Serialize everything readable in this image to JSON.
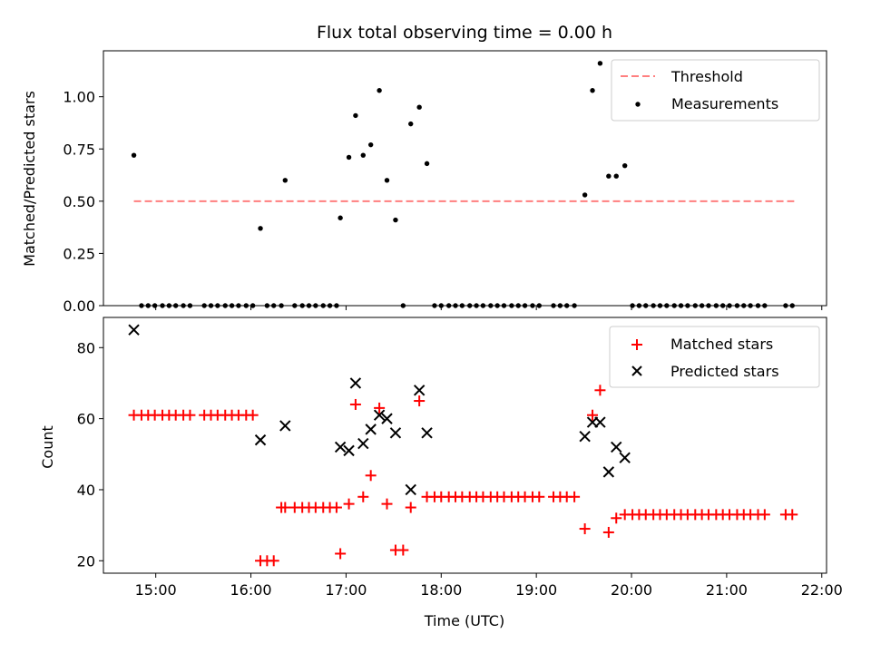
{
  "chart_data": [
    {
      "type": "scatter",
      "title": "Flux total observing time = 0.00 h",
      "xlabel": "",
      "ylabel": "Matched/Predicted stars",
      "x_unit": "hours UTC",
      "xlim": [
        14.45,
        22.05
      ],
      "ylim": [
        0,
        1.22
      ],
      "yticks": [
        0.0,
        0.25,
        0.5,
        0.75,
        1.0
      ],
      "ytick_labels": [
        "0.00",
        "0.25",
        "0.50",
        "0.75",
        "1.00"
      ],
      "xticks": [
        15,
        16,
        17,
        18,
        19,
        20,
        21,
        22
      ],
      "xtick_labels": [],
      "legend_position": "upper right",
      "series": [
        {
          "name": "Threshold",
          "kind": "dashed-line",
          "color": "#ff7f7f",
          "x": [
            14.77,
            21.71
          ],
          "y": [
            0.5,
            0.5
          ]
        },
        {
          "name": "Measurements",
          "kind": "dots",
          "color": "#000000",
          "x": [
            14.77,
            14.85,
            14.92,
            14.99,
            15.07,
            15.14,
            15.21,
            15.29,
            15.36,
            15.51,
            15.58,
            15.65,
            15.73,
            15.8,
            15.87,
            15.95,
            16.02,
            16.1,
            16.17,
            16.24,
            16.32,
            16.36,
            16.46,
            16.54,
            16.61,
            16.68,
            16.76,
            16.83,
            16.9,
            16.94,
            17.03,
            17.1,
            17.18,
            17.26,
            17.35,
            17.43,
            17.52,
            17.6,
            17.68,
            17.77,
            17.85,
            17.93,
            18.0,
            18.08,
            18.15,
            18.22,
            18.3,
            18.37,
            18.44,
            18.52,
            18.59,
            18.66,
            18.74,
            18.81,
            18.88,
            18.96,
            19.03,
            19.18,
            19.25,
            19.32,
            19.4,
            19.51,
            19.59,
            19.67,
            19.76,
            19.84,
            19.93,
            20.01,
            20.08,
            20.15,
            20.23,
            20.3,
            20.37,
            20.45,
            20.52,
            20.59,
            20.67,
            20.74,
            20.81,
            20.89,
            20.96,
            21.03,
            21.11,
            21.18,
            21.25,
            21.33,
            21.4,
            21.62,
            21.69
          ],
          "y": [
            0.72,
            0,
            0,
            0,
            0,
            0,
            0,
            0,
            0,
            0,
            0,
            0,
            0,
            0,
            0,
            0,
            0,
            0.37,
            0,
            0,
            0,
            0.6,
            0,
            0,
            0,
            0,
            0,
            0,
            0,
            0.42,
            0.71,
            0.91,
            0.72,
            0.77,
            1.03,
            0.6,
            0.41,
            0,
            0.87,
            0.95,
            0.68,
            0,
            0,
            0,
            0,
            0,
            0,
            0,
            0,
            0,
            0,
            0,
            0,
            0,
            0,
            0,
            0,
            0,
            0,
            0,
            0,
            0.53,
            1.03,
            1.16,
            0.62,
            0.62,
            0.67,
            0,
            0,
            0,
            0,
            0,
            0,
            0,
            0,
            0,
            0,
            0,
            0,
            0,
            0,
            0,
            0,
            0,
            0,
            0,
            0,
            0,
            0
          ]
        }
      ]
    },
    {
      "type": "scatter",
      "title": "",
      "xlabel": "Time (UTC)",
      "ylabel": "Count",
      "x_unit": "hours UTC",
      "xlim": [
        14.45,
        22.05
      ],
      "ylim": [
        16.5,
        88.5
      ],
      "yticks": [
        20,
        40,
        60,
        80
      ],
      "ytick_labels": [
        "20",
        "40",
        "60",
        "80"
      ],
      "xticks": [
        15,
        16,
        17,
        18,
        19,
        20,
        21,
        22
      ],
      "xtick_labels": [
        "15:00",
        "16:00",
        "17:00",
        "18:00",
        "19:00",
        "20:00",
        "21:00",
        "22:00"
      ],
      "legend_position": "upper right",
      "series": [
        {
          "name": "Matched stars",
          "kind": "plus",
          "color": "#ff0000",
          "x": [
            14.77,
            14.85,
            14.92,
            14.99,
            15.07,
            15.14,
            15.21,
            15.29,
            15.36,
            15.51,
            15.58,
            15.65,
            15.73,
            15.8,
            15.87,
            15.95,
            16.02,
            16.1,
            16.17,
            16.24,
            16.32,
            16.36,
            16.46,
            16.54,
            16.61,
            16.68,
            16.76,
            16.83,
            16.9,
            16.94,
            17.03,
            17.1,
            17.18,
            17.26,
            17.35,
            17.43,
            17.52,
            17.6,
            17.68,
            17.77,
            17.85,
            17.93,
            18.0,
            18.08,
            18.15,
            18.22,
            18.3,
            18.37,
            18.44,
            18.52,
            18.59,
            18.66,
            18.74,
            18.81,
            18.88,
            18.96,
            19.03,
            19.18,
            19.25,
            19.32,
            19.4,
            19.51,
            19.59,
            19.67,
            19.76,
            19.84,
            19.93,
            20.01,
            20.08,
            20.15,
            20.23,
            20.3,
            20.37,
            20.45,
            20.52,
            20.59,
            20.67,
            20.74,
            20.81,
            20.89,
            20.96,
            21.03,
            21.11,
            21.18,
            21.25,
            21.33,
            21.4,
            21.62,
            21.69
          ],
          "y": [
            61,
            61,
            61,
            61,
            61,
            61,
            61,
            61,
            61,
            61,
            61,
            61,
            61,
            61,
            61,
            61,
            61,
            20,
            20,
            20,
            35,
            35,
            35,
            35,
            35,
            35,
            35,
            35,
            35,
            22,
            36,
            64,
            38,
            44,
            63,
            36,
            23,
            23,
            35,
            65,
            38,
            38,
            38,
            38,
            38,
            38,
            38,
            38,
            38,
            38,
            38,
            38,
            38,
            38,
            38,
            38,
            38,
            38,
            38,
            38,
            38,
            29,
            61,
            68,
            28,
            32,
            33,
            33,
            33,
            33,
            33,
            33,
            33,
            33,
            33,
            33,
            33,
            33,
            33,
            33,
            33,
            33,
            33,
            33,
            33,
            33,
            33,
            33,
            33
          ]
        },
        {
          "name": "Predicted stars",
          "kind": "cross",
          "color": "#000000",
          "x": [
            14.77,
            16.1,
            16.36,
            16.94,
            17.03,
            17.1,
            17.18,
            17.26,
            17.35,
            17.43,
            17.52,
            17.68,
            17.77,
            17.85,
            19.51,
            19.59,
            19.67,
            19.76,
            19.84,
            19.93
          ],
          "y": [
            85,
            54,
            58,
            52,
            51,
            70,
            53,
            57,
            61,
            60,
            56,
            40,
            68,
            56,
            55,
            59,
            59,
            45,
            52,
            49
          ]
        }
      ]
    }
  ]
}
